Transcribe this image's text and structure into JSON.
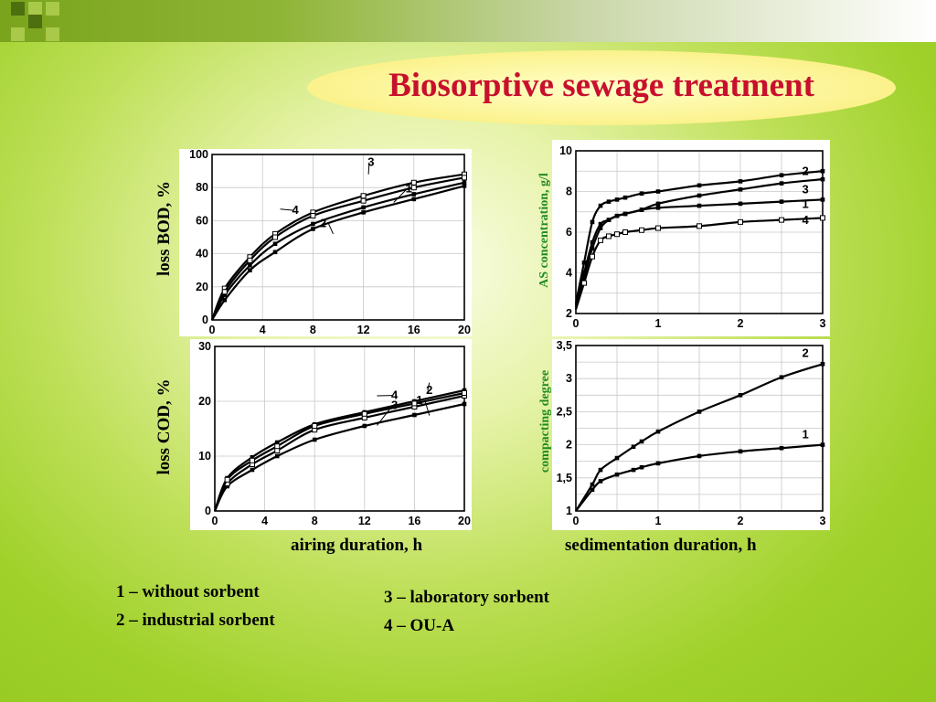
{
  "title": "Biosorptive sewage treatment",
  "colors": {
    "title": "#c8102e",
    "green_label": "#1f8a20",
    "decor_dark": "#4e6f10",
    "decor_light": "#a9c94a"
  },
  "axis_labels": {
    "bod": "loss BOD, %",
    "cod": "loss COD, %",
    "as": "AS concentration, g/l",
    "compact": "compacting degree",
    "airing": "airing duration, h",
    "sedimentation": "sedimentation duration, h"
  },
  "legend": [
    "1 – without sorbent",
    "2 – industrial sorbent",
    "3 – laboratory sorbent",
    "4 – OU-A"
  ],
  "chart_data": [
    {
      "id": "bod",
      "type": "line",
      "xlim": [
        0,
        20
      ],
      "ylim": [
        0,
        100
      ],
      "xticks": [
        "0",
        "4",
        "8",
        "12",
        "16",
        "20"
      ],
      "yticks": [
        "0",
        "20",
        "40",
        "60",
        "80",
        "100"
      ],
      "grid": true,
      "series": [
        {
          "name": "1",
          "x": [
            0,
            1,
            3,
            5,
            8,
            12,
            16,
            20
          ],
          "y": [
            0,
            15,
            33,
            46,
            58,
            68,
            76,
            83
          ],
          "marker": "filled"
        },
        {
          "name": "2",
          "x": [
            0,
            1,
            3,
            5,
            8,
            12,
            16,
            20
          ],
          "y": [
            0,
            12,
            30,
            41,
            55,
            65,
            73,
            81
          ],
          "marker": "filled"
        },
        {
          "name": "3",
          "x": [
            0,
            1,
            3,
            5,
            8,
            12,
            16,
            20
          ],
          "y": [
            0,
            19,
            38,
            52,
            65,
            75,
            83,
            88
          ],
          "marker": "open"
        },
        {
          "name": "4",
          "x": [
            0,
            1,
            3,
            5,
            8,
            12,
            16,
            20
          ],
          "y": [
            0,
            17,
            36,
            50,
            63,
            72,
            80,
            86
          ],
          "marker": "open"
        }
      ]
    },
    {
      "id": "cod",
      "type": "line",
      "xlim": [
        0,
        20
      ],
      "ylim": [
        0,
        30
      ],
      "xticks": [
        "0",
        "4",
        "8",
        "12",
        "16",
        "20"
      ],
      "yticks": [
        "0",
        "10",
        "20",
        "30"
      ],
      "grid": true,
      "series": [
        {
          "name": "1",
          "x": [
            0,
            1,
            3,
            5,
            8,
            12,
            16,
            20
          ],
          "y": [
            0,
            4.5,
            7.5,
            10,
            13,
            15.5,
            17.5,
            19.5
          ],
          "marker": "filled"
        },
        {
          "name": "2",
          "x": [
            0,
            1,
            3,
            5,
            8,
            12,
            16,
            20
          ],
          "y": [
            0,
            6,
            9.8,
            12.5,
            15.8,
            18,
            20,
            22
          ],
          "marker": "filled"
        },
        {
          "name": "3",
          "x": [
            0,
            1,
            3,
            5,
            8,
            12,
            16,
            20
          ],
          "y": [
            0,
            5,
            8.5,
            11,
            14.8,
            17,
            19,
            21
          ],
          "marker": "open"
        },
        {
          "name": "4",
          "x": [
            0,
            1,
            3,
            5,
            8,
            12,
            16,
            20
          ],
          "y": [
            0,
            5.7,
            9.2,
            11.8,
            15.5,
            17.7,
            19.6,
            21.5
          ],
          "marker": "open"
        }
      ]
    },
    {
      "id": "as",
      "type": "line",
      "xlim": [
        0,
        3
      ],
      "ylim": [
        2,
        10
      ],
      "xticks": [
        "0",
        "1",
        "2",
        "3"
      ],
      "yticks": [
        "2",
        "4",
        "6",
        "8",
        "10"
      ],
      "grid": true,
      "series": [
        {
          "name": "1",
          "x": [
            0,
            0.1,
            0.2,
            0.3,
            0.4,
            0.5,
            0.6,
            0.8,
            1,
            1.5,
            2,
            2.5,
            3
          ],
          "y": [
            2.3,
            3.8,
            5.2,
            6.2,
            6.6,
            6.8,
            6.9,
            7.1,
            7.2,
            7.3,
            7.4,
            7.5,
            7.6
          ],
          "marker": "filled"
        },
        {
          "name": "2",
          "x": [
            0,
            0.1,
            0.2,
            0.3,
            0.4,
            0.5,
            0.6,
            0.8,
            1,
            1.5,
            2,
            2.5,
            3
          ],
          "y": [
            2.5,
            4.5,
            6.5,
            7.3,
            7.5,
            7.6,
            7.7,
            7.9,
            8,
            8.3,
            8.5,
            8.8,
            9
          ],
          "marker": "filled"
        },
        {
          "name": "3",
          "x": [
            0,
            0.1,
            0.2,
            0.3,
            0.4,
            0.5,
            0.6,
            0.8,
            1,
            1.5,
            2,
            2.5,
            3
          ],
          "y": [
            2.4,
            4.0,
            5.5,
            6.4,
            6.6,
            6.8,
            6.9,
            7.1,
            7.4,
            7.8,
            8.1,
            8.4,
            8.6
          ],
          "marker": "filled"
        },
        {
          "name": "4",
          "x": [
            0,
            0.1,
            0.2,
            0.3,
            0.4,
            0.5,
            0.6,
            0.8,
            1,
            1.5,
            2,
            2.5,
            3
          ],
          "y": [
            2.2,
            3.5,
            4.8,
            5.6,
            5.8,
            5.9,
            6.0,
            6.1,
            6.2,
            6.3,
            6.5,
            6.6,
            6.7
          ],
          "marker": "open"
        }
      ]
    },
    {
      "id": "compact",
      "type": "line",
      "xlim": [
        0,
        3
      ],
      "ylim": [
        1,
        3.5
      ],
      "xticks": [
        "0",
        "1",
        "2",
        "3"
      ],
      "yticks": [
        "1",
        "1,5",
        "2",
        "2,5",
        "3",
        "3,5"
      ],
      "grid": true,
      "series": [
        {
          "name": "1",
          "x": [
            0,
            0.2,
            0.3,
            0.5,
            0.7,
            0.8,
            1,
            1.5,
            2,
            2.5,
            3
          ],
          "y": [
            1,
            1.32,
            1.45,
            1.55,
            1.62,
            1.66,
            1.72,
            1.83,
            1.9,
            1.95,
            2
          ],
          "marker": "filled"
        },
        {
          "name": "2",
          "x": [
            0,
            0.2,
            0.3,
            0.5,
            0.7,
            0.8,
            1,
            1.5,
            2,
            2.5,
            3
          ],
          "y": [
            1,
            1.4,
            1.62,
            1.8,
            1.97,
            2.05,
            2.2,
            2.5,
            2.75,
            3.02,
            3.22
          ],
          "marker": "filled"
        }
      ]
    }
  ]
}
